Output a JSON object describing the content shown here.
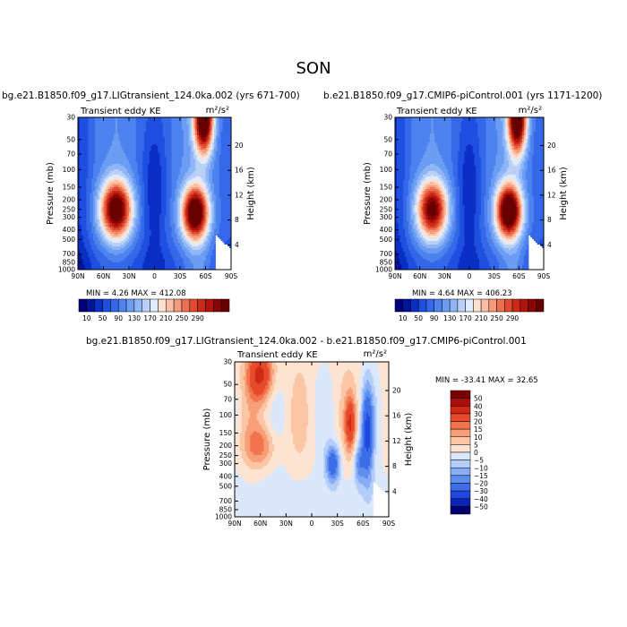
{
  "figure": {
    "title": "SON",
    "panels": [
      {
        "case_title": "bg.e21.B1850.f09_g17.LIGtransient_124.0ka.002 (yrs 671-700)",
        "var_label": "Transient eddy KE",
        "units": "m²/s²",
        "min_max": "MIN =    4.26   MAX = 412.08"
      },
      {
        "case_title": "b.e21.B1850.f09_g17.CMIP6-piControl.001 (yrs 1171-1200)",
        "var_label": "Transient eddy KE",
        "units": "m²/s²",
        "min_max": "MIN =    4.64   MAX = 406.23"
      },
      {
        "case_title": "bg.e21.B1850.f09_g17.LIGtransient_124.0ka.002 - b.e21.B1850.f09_g17.CMIP6-piControl.001",
        "var_label": "Transient eddy KE",
        "units": "m²/s²",
        "min_max": "MIN = -33.41   MAX =   32.65"
      }
    ],
    "colors": {
      "abs_scale": [
        "#00007a",
        "#00149a",
        "#0a2fc4",
        "#1f4fe0",
        "#3568e8",
        "#4d82ef",
        "#6b9df3",
        "#8fb6f6",
        "#b9d1f7",
        "#e0ebfb",
        "#fde0d0",
        "#fac0a6",
        "#f59b7b",
        "#ec7152",
        "#df4a30",
        "#cc2a19",
        "#b0140c",
        "#8a0604",
        "#690000"
      ],
      "diff_scale": [
        "#00006e",
        "#0a24b8",
        "#1f48de",
        "#3d6ee8",
        "#5e8ff0",
        "#87aef5",
        "#b3cdf8",
        "#dbe8fc",
        "#fde4d2",
        "#fbc6a5",
        "#f79f78",
        "#f1744d",
        "#e54a2b",
        "#cf2914",
        "#a90f08",
        "#7d0202"
      ]
    }
  },
  "chart_data": [
    {
      "type": "heatmap",
      "title": "bg.e21.B1850.f09_g17.LIGtransient_124.0ka.002 (yrs 671-700)",
      "xlabel": "",
      "ylabel": "Pressure (mb)",
      "y2label": "Height (km)",
      "x_ticks": [
        "90N",
        "60N",
        "30N",
        "0",
        "30S",
        "60S",
        "90S"
      ],
      "x_range": [
        90,
        -90
      ],
      "y_ticks": [
        30,
        50,
        70,
        100,
        150,
        200,
        250,
        300,
        400,
        500,
        700,
        850,
        1000
      ],
      "y2_ticks": [
        4,
        8,
        12,
        16,
        20
      ],
      "y_range": [
        1000,
        30
      ],
      "y_scale": "log",
      "colorbar_labels": [
        "10",
        "50",
        "90",
        "130",
        "170",
        "210",
        "250",
        "290"
      ],
      "min": 4.26,
      "max": 412.08,
      "features": [
        {
          "lat": 45,
          "p": 250,
          "value": 360,
          "lat_width": 18,
          "p_width_log": 0.28
        },
        {
          "lat": -48,
          "p": 270,
          "value": 380,
          "lat_width": 15,
          "p_width_log": 0.26
        },
        {
          "lat": -58,
          "p": 30,
          "value": 412,
          "lat_width": 11,
          "p_width_log": 0.35
        }
      ]
    },
    {
      "type": "heatmap",
      "title": "b.e21.B1850.f09_g17.CMIP6-piControl.001 (yrs 1171-1200)",
      "xlabel": "",
      "ylabel": "Pressure (mb)",
      "y2label": "Height (km)",
      "x_ticks": [
        "90N",
        "60N",
        "30N",
        "0",
        "30S",
        "60S",
        "90S"
      ],
      "x_range": [
        90,
        -90
      ],
      "y_ticks": [
        30,
        50,
        70,
        100,
        150,
        200,
        250,
        300,
        400,
        500,
        700,
        850,
        1000
      ],
      "y2_ticks": [
        4,
        8,
        12,
        16,
        20
      ],
      "y_range": [
        1000,
        30
      ],
      "y_scale": "log",
      "colorbar_labels": [
        "10",
        "50",
        "90",
        "130",
        "170",
        "210",
        "250",
        "290"
      ],
      "min": 4.64,
      "max": 406.23,
      "features": [
        {
          "lat": 45,
          "p": 250,
          "value": 330,
          "lat_width": 18,
          "p_width_log": 0.28
        },
        {
          "lat": -48,
          "p": 260,
          "value": 395,
          "lat_width": 15,
          "p_width_log": 0.26
        },
        {
          "lat": -58,
          "p": 30,
          "value": 406,
          "lat_width": 11,
          "p_width_log": 0.35
        }
      ]
    },
    {
      "type": "heatmap",
      "title": "bg.e21.B1850.f09_g17.LIGtransient_124.0ka.002 - b.e21.B1850.f09_g17.CMIP6-piControl.001",
      "xlabel": "",
      "ylabel": "Pressure (mb)",
      "y2label": "Height (km)",
      "x_ticks": [
        "90N",
        "60N",
        "30N",
        "0",
        "30S",
        "60S",
        "90S"
      ],
      "x_range": [
        90,
        -90
      ],
      "y_ticks": [
        30,
        50,
        70,
        100,
        150,
        200,
        250,
        300,
        400,
        500,
        700,
        850,
        1000
      ],
      "y2_ticks": [
        4,
        8,
        12,
        16,
        20
      ],
      "y_range": [
        1000,
        30
      ],
      "y_scale": "log",
      "colorbar_labels": [
        "50",
        "40",
        "30",
        "20",
        "15",
        "10",
        "5",
        "0",
        "-5",
        "-10",
        "-15",
        "-20",
        "-30",
        "-40",
        "-50"
      ],
      "min": -33.41,
      "max": 32.65,
      "features": [
        {
          "lat": 60,
          "p": 40,
          "value": 30,
          "lat_width": 15,
          "p_width_log": 0.25
        },
        {
          "lat": 60,
          "p": 200,
          "value": 15,
          "lat_width": 18,
          "p_width_log": 0.2
        },
        {
          "lat": -45,
          "p": 120,
          "value": 25,
          "lat_width": 6,
          "p_width_log": 0.25
        },
        {
          "lat": -25,
          "p": 300,
          "value": -28,
          "lat_width": 8,
          "p_width_log": 0.18
        },
        {
          "lat": -65,
          "p": 150,
          "value": -33,
          "lat_width": 7,
          "p_width_log": 0.45
        },
        {
          "lat": -55,
          "p": 300,
          "value": -18,
          "lat_width": 6,
          "p_width_log": 0.2
        }
      ]
    }
  ]
}
